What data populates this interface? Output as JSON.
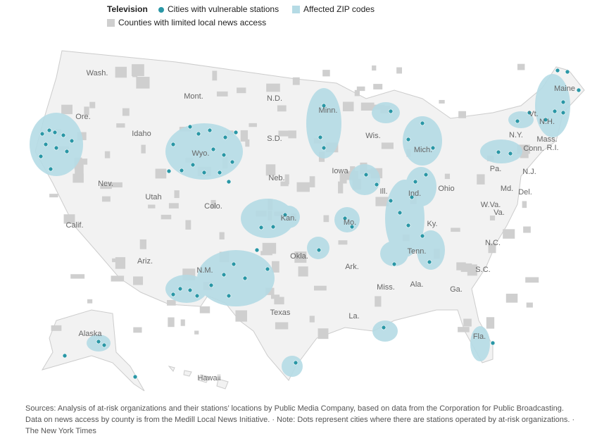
{
  "legend": {
    "title": "Television",
    "items": [
      "Cities with vulnerable stations",
      "Affected ZIP codes",
      "Counties with limited local news access"
    ]
  },
  "map": {
    "labels": [
      "Wash.",
      "Mont.",
      "N.D.",
      "Minn.",
      "Ore.",
      "Idaho",
      "Wyo.",
      "S.D.",
      "Wis.",
      "Mich.",
      "N.Y.",
      "Vt.",
      "N.H.",
      "Maine",
      "Mass.",
      "R.I.",
      "Conn.",
      "Pa.",
      "N.J.",
      "Iowa",
      "Neb.",
      "Nev.",
      "Utah",
      "Colo.",
      "Ill.",
      "Ind.",
      "Ohio",
      "Md.",
      "Del.",
      "W.Va.",
      "Va.",
      "Kan.",
      "Mo.",
      "Ky.",
      "Calif.",
      "N.C.",
      "Tenn.",
      "Okla.",
      "Ariz.",
      "N.M.",
      "Ark.",
      "S.C.",
      "Miss.",
      "Ala.",
      "Ga.",
      "Texas",
      "La.",
      "Fla.",
      "Alaska",
      "Hawaii"
    ]
  },
  "footer": {
    "text": "Sources: Analysis of at-risk organizations and their stations’ locations by Public Media Company, based on data from the Corporation for Public Broadcasting. Data on news access by county is from the Medill Local News Initiative. · Note: Dots represent cities where there are stations operated by at-risk organizations. · The New York Times"
  }
}
